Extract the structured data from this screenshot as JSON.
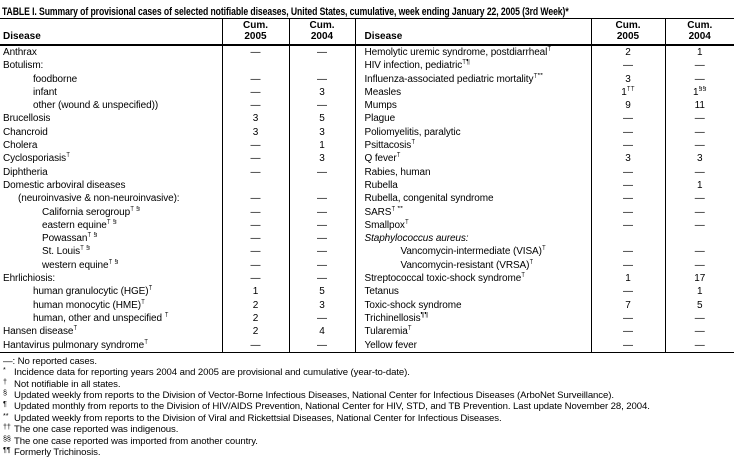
{
  "title": "TABLE I. Summary of provisional cases of selected notifiable diseases, United States, cumulative, week ending January 22, 2005 (3rd Week)*",
  "header": {
    "disease": "Disease",
    "cum": "Cum.",
    "y2005": "2005",
    "y2004": "2004"
  },
  "no_cases_symbol": "—",
  "table": {
    "left_rows": [
      {
        "label": "Anthrax",
        "indent": 0,
        "cum_2005": "—",
        "cum_2004": "—"
      },
      {
        "label": "Botulism:",
        "indent": 0,
        "cum_2005": "",
        "cum_2004": ""
      },
      {
        "label": "foodborne",
        "indent": 2,
        "cum_2005": "—",
        "cum_2004": "—"
      },
      {
        "label": "infant",
        "indent": 2,
        "cum_2005": "—",
        "cum_2004": "3"
      },
      {
        "label": "other (wound & unspecified))",
        "indent": 2,
        "cum_2005": "—",
        "cum_2004": "—"
      },
      {
        "label": "Brucellosis",
        "indent": 0,
        "cum_2005": "3",
        "cum_2004": "5"
      },
      {
        "label": "Chancroid",
        "indent": 0,
        "cum_2005": "3",
        "cum_2004": "3"
      },
      {
        "label": "Cholera",
        "indent": 0,
        "cum_2005": "—",
        "cum_2004": "1"
      },
      {
        "label": "Cyclosporiasis",
        "sup": "†",
        "indent": 0,
        "cum_2005": "—",
        "cum_2004": "3"
      },
      {
        "label": "Diphtheria",
        "indent": 0,
        "cum_2005": "—",
        "cum_2004": "—"
      },
      {
        "label": "Domestic arboviral diseases",
        "indent": 0,
        "cum_2005": "",
        "cum_2004": ""
      },
      {
        "label": "(neuroinvasive & non-neuroinvasive):",
        "indent": 1,
        "cum_2005": "—",
        "cum_2004": "—"
      },
      {
        "label": "California serogroup",
        "sup": "† §",
        "indent": 3,
        "cum_2005": "—",
        "cum_2004": "—"
      },
      {
        "label": "eastern equine",
        "sup": "† §",
        "indent": 3,
        "cum_2005": "—",
        "cum_2004": "—"
      },
      {
        "label": "Powassan",
        "sup": "† §",
        "indent": 3,
        "cum_2005": "—",
        "cum_2004": "—"
      },
      {
        "label": "St. Louis",
        "sup": "† §",
        "indent": 3,
        "cum_2005": "—",
        "cum_2004": "—"
      },
      {
        "label": "western equine",
        "sup": "† §",
        "indent": 3,
        "cum_2005": "—",
        "cum_2004": "—"
      },
      {
        "label": "Ehrlichiosis:",
        "indent": 0,
        "cum_2005": "—",
        "cum_2004": "—"
      },
      {
        "label": "human granulocytic (HGE)",
        "sup": "†",
        "indent": 2,
        "cum_2005": "1",
        "cum_2004": "5"
      },
      {
        "label": "human monocytic (HME)",
        "sup": "†",
        "indent": 2,
        "cum_2005": "2",
        "cum_2004": "3"
      },
      {
        "label": "human, other and unspecified ",
        "sup": "†",
        "indent": 2,
        "cum_2005": "2",
        "cum_2004": "—"
      },
      {
        "label": "Hansen disease",
        "sup": "†",
        "indent": 0,
        "cum_2005": "2",
        "cum_2004": "4"
      },
      {
        "label": "Hantavirus pulmonary syndrome",
        "sup": "†",
        "indent": 0,
        "cum_2005": "—",
        "cum_2004": "—"
      }
    ],
    "right_rows": [
      {
        "label": "Hemolytic uremic syndrome, postdiarrheal",
        "sup": "†",
        "indent": 0,
        "cum_2005": "2",
        "cum_2004": "1"
      },
      {
        "label": "HIV infection, pediatric",
        "sup": "†¶",
        "indent": 0,
        "cum_2005": "—",
        "cum_2004": "—"
      },
      {
        "label": "Influenza-associated pediatric mortality",
        "sup": "†**",
        "indent": 0,
        "cum_2005": "3",
        "cum_2004": "—"
      },
      {
        "label": "Measles",
        "indent": 0,
        "cum_2005": "1",
        "sup_2005": "††",
        "cum_2004": "1",
        "sup_2004": "§§"
      },
      {
        "label": "Mumps",
        "indent": 0,
        "cum_2005": "9",
        "cum_2004": "11"
      },
      {
        "label": "Plague",
        "indent": 0,
        "cum_2005": "—",
        "cum_2004": "—"
      },
      {
        "label": "Poliomyelitis, paralytic",
        "indent": 0,
        "cum_2005": "—",
        "cum_2004": "—"
      },
      {
        "label": "Psittacosis",
        "sup": "†",
        "indent": 0,
        "cum_2005": "—",
        "cum_2004": "—"
      },
      {
        "label": "Q fever",
        "sup": "†",
        "indent": 0,
        "cum_2005": "3",
        "cum_2004": "3"
      },
      {
        "label": "Rabies, human",
        "indent": 0,
        "cum_2005": "—",
        "cum_2004": "—"
      },
      {
        "label": "Rubella",
        "indent": 0,
        "cum_2005": "—",
        "cum_2004": "1"
      },
      {
        "label": "Rubella, congenital syndrome",
        "indent": 0,
        "cum_2005": "—",
        "cum_2004": "—"
      },
      {
        "label": "SARS",
        "sup": "† **",
        "indent": 0,
        "cum_2005": "—",
        "cum_2004": "—"
      },
      {
        "label": "Smallpox",
        "sup": "†",
        "indent": 0,
        "cum_2005": "—",
        "cum_2004": "—"
      },
      {
        "label": "Staphylococcus aureus:",
        "italic": true,
        "indent": 0,
        "cum_2005": "",
        "cum_2004": ""
      },
      {
        "label": "Vancomycin-intermediate (VISA)",
        "sup": "†",
        "indent": 2,
        "cum_2005": "—",
        "cum_2004": "—"
      },
      {
        "label": "Vancomycin-resistant (VRSA)",
        "sup": "†",
        "indent": 2,
        "cum_2005": "—",
        "cum_2004": "—"
      },
      {
        "label": "Streptococcal toxic-shock syndrome",
        "sup": "†",
        "indent": 0,
        "cum_2005": "1",
        "cum_2004": "17"
      },
      {
        "label": "Tetanus",
        "indent": 0,
        "cum_2005": "—",
        "cum_2004": "1"
      },
      {
        "label": "Toxic-shock syndrome",
        "indent": 0,
        "cum_2005": "7",
        "cum_2004": "5"
      },
      {
        "label": "Trichinellosis",
        "sup": "¶¶",
        "indent": 0,
        "cum_2005": "—",
        "cum_2004": "—"
      },
      {
        "label": "Tularemia",
        "sup": "†",
        "indent": 0,
        "cum_2005": "—",
        "cum_2004": "—"
      },
      {
        "label": "Yellow fever",
        "indent": 0,
        "cum_2005": "—",
        "cum_2004": "—"
      }
    ]
  },
  "footnotes": [
    {
      "marker": "—:",
      "raised": false,
      "text": "No reported cases."
    },
    {
      "marker": "*",
      "raised": true,
      "text": "Incidence data for reporting years 2004 and 2005 are provisional and cumulative (year-to-date)."
    },
    {
      "marker": "†",
      "raised": true,
      "text": "Not notifiable in all states."
    },
    {
      "marker": "§",
      "raised": true,
      "text": "Updated weekly from reports to the Division of Vector-Borne Infectious Diseases, National Center for Infectious Diseases (ArboNet Surveillance)."
    },
    {
      "marker": "¶",
      "raised": true,
      "text": "Updated monthly from reports to the Division of HIV/AIDS Prevention, National Center for HIV, STD, and TB Prevention. Last update November 28, 2004."
    },
    {
      "marker": "**",
      "raised": true,
      "text": "Updated weekly from reports to the Division of Viral and Rickettsial Diseases, National Center for Infectious Diseases."
    },
    {
      "marker": "††",
      "raised": true,
      "text": "The one case reported was indigenous."
    },
    {
      "marker": "§§",
      "raised": true,
      "text": "The one case reported was imported from another country."
    },
    {
      "marker": "¶¶",
      "raised": true,
      "text": "Formerly Trichinosis."
    }
  ]
}
